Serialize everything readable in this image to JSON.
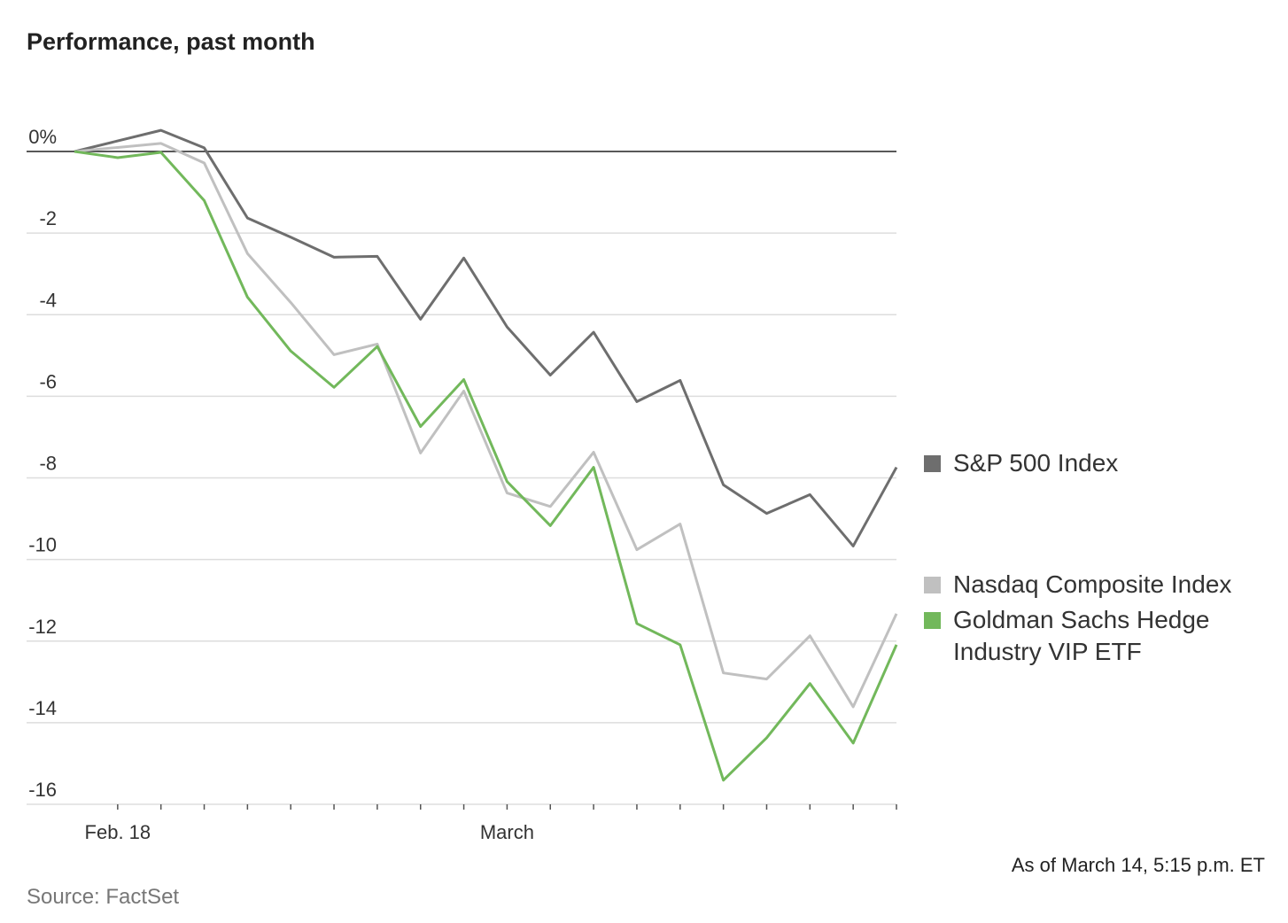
{
  "chart_data": {
    "type": "line",
    "title": "Performance, past month",
    "note": "As of March 14, 5:15 p.m. ET",
    "source": "Source: FactSet",
    "categories": [
      null,
      "Feb. 18",
      null,
      null,
      null,
      null,
      null,
      null,
      null,
      null,
      "March",
      null,
      null,
      null,
      null,
      null,
      null,
      null,
      null,
      null
    ],
    "series": [
      {
        "name": "S&P 500 Index",
        "color": "#6e6e6e",
        "values": [
          0,
          0.26,
          0.52,
          0.09,
          -1.63,
          -2.1,
          -2.59,
          -2.57,
          -4.11,
          -2.61,
          -4.3,
          -5.48,
          -4.43,
          -6.13,
          -5.61,
          -8.17,
          -8.87,
          -8.41,
          -9.67,
          -7.74
        ]
      },
      {
        "name": "Nasdaq Composite Index",
        "color": "#c0c0c0",
        "values": [
          0,
          0.1,
          0.2,
          -0.28,
          -2.5,
          -3.7,
          -4.98,
          -4.72,
          -7.39,
          -5.87,
          -8.37,
          -8.7,
          -7.37,
          -9.76,
          -9.13,
          -12.78,
          -12.93,
          -11.87,
          -13.61,
          -11.33
        ]
      },
      {
        "name": "Goldman Sachs Hedge Industry VIP ETF",
        "color": "#72b85b",
        "values": [
          0,
          -0.15,
          -0.02,
          -1.2,
          -3.57,
          -4.89,
          -5.78,
          -4.78,
          -6.74,
          -5.59,
          -8.09,
          -9.17,
          -7.74,
          -11.57,
          -12.09,
          -15.41,
          -14.37,
          -13.04,
          -14.5,
          -12.09
        ]
      }
    ],
    "ylim": [
      -16,
      1
    ],
    "yticks": [
      {
        "value": 0,
        "label": "0%"
      },
      -2,
      -4,
      -6,
      -8,
      -10,
      -12,
      -14,
      -16
    ],
    "grid": true
  }
}
